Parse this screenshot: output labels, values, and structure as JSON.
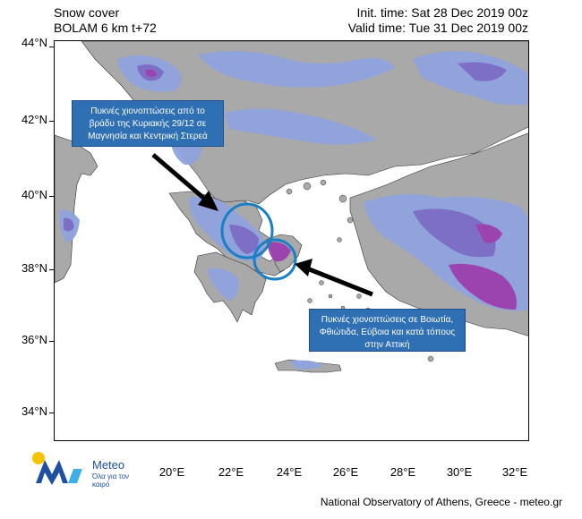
{
  "header": {
    "title": "Snow cover",
    "model": "BOLAM 6 km t+72",
    "init_time": "Init. time: Sat 28 Dec 2019 00z",
    "valid_time": "Valid time: Tue 31 Dec 2019 00z"
  },
  "axes": {
    "lat_labels": [
      "44°N",
      "42°N",
      "40°N",
      "38°N",
      "36°N",
      "34°N"
    ],
    "lon_labels": [
      "20°E",
      "22°E",
      "24°E",
      "26°E",
      "28°E",
      "30°E",
      "32°E"
    ]
  },
  "callouts": {
    "north": "Πυκνές χιονοπτώσεις από το βράδυ της Κυριακής 29/12 σε Μαγνησία και Κεντρική Στερεά",
    "south": "Πυκνές χιονοπτώσεις σε Βοιωτία, Φθιώτιδα, Εύβοια και κατά τόπους στην Αττική"
  },
  "logo": {
    "name": "Meteo",
    "tagline": "Όλα για τον καιρό"
  },
  "footer": {
    "credit": "National Observatory of Athens, Greece - meteo.gr"
  },
  "colors": {
    "land": "#a9a9a9",
    "sea": "#ffffff",
    "snow_light": "#8fa3dd",
    "snow_mid": "#7b6cc8",
    "snow_heavy": "#9b3fb0",
    "highlight_circle": "#1b7fc4",
    "callout_bg": "#2f6fb4",
    "arrow": "#000000"
  }
}
